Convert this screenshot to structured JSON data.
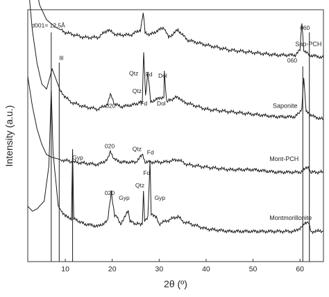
{
  "chart_data": {
    "type": "line",
    "xlabel": "2θ (º)",
    "ylabel": "Intensity (a.u.)",
    "xlim": [
      2,
      65
    ],
    "xticks": [
      10,
      20,
      30,
      40,
      50,
      60
    ],
    "grid": false,
    "series": [
      {
        "name": "Sap-PCH",
        "label_x": 59,
        "offset": 0.69,
        "points": [
          [
            2,
            0.98
          ],
          [
            2.8,
            0.62
          ],
          [
            3.6,
            0.42
          ],
          [
            4.5,
            0.33
          ],
          [
            6,
            0.27
          ],
          [
            8,
            0.24
          ],
          [
            10,
            0.22
          ],
          [
            14,
            0.2
          ],
          [
            17,
            0.2
          ],
          [
            19,
            0.23
          ],
          [
            21,
            0.21
          ],
          [
            24,
            0.21
          ],
          [
            26,
            0.23
          ],
          [
            26.6,
            0.3
          ],
          [
            27,
            0.22
          ],
          [
            28,
            0.21
          ],
          [
            31,
            0.24
          ],
          [
            32,
            0.2
          ],
          [
            34,
            0.23
          ],
          [
            36,
            0.19
          ],
          [
            40,
            0.17
          ],
          [
            45,
            0.15
          ],
          [
            50,
            0.14
          ],
          [
            55,
            0.13
          ],
          [
            59,
            0.13
          ],
          [
            60,
            0.15
          ],
          [
            60.4,
            0.26
          ],
          [
            60.8,
            0.15
          ],
          [
            62,
            0.13
          ],
          [
            65,
            0.12
          ]
        ]
      },
      {
        "name": "Saponite",
        "label_x": 54.2,
        "offset": 0.455,
        "points": [
          [
            2,
            0.66
          ],
          [
            3,
            0.46
          ],
          [
            4,
            0.33
          ],
          [
            5,
            0.25
          ],
          [
            6,
            0.23
          ],
          [
            6.6,
            0.27
          ],
          [
            7.2,
            0.31
          ],
          [
            8,
            0.27
          ],
          [
            9,
            0.22
          ],
          [
            11,
            0.18
          ],
          [
            14,
            0.16
          ],
          [
            17,
            0.15
          ],
          [
            19,
            0.17
          ],
          [
            19.6,
            0.21
          ],
          [
            20.5,
            0.17
          ],
          [
            22,
            0.16
          ],
          [
            25,
            0.17
          ],
          [
            26.4,
            0.18
          ],
          [
            26.7,
            0.38
          ],
          [
            27.1,
            0.2
          ],
          [
            27.6,
            0.3
          ],
          [
            28.2,
            0.18
          ],
          [
            31,
            0.2
          ],
          [
            31.1,
            0.3
          ],
          [
            31.6,
            0.18
          ],
          [
            34,
            0.2
          ],
          [
            35,
            0.18
          ],
          [
            40,
            0.15
          ],
          [
            45,
            0.14
          ],
          [
            50,
            0.13
          ],
          [
            55,
            0.12
          ],
          [
            59,
            0.12
          ],
          [
            60.4,
            0.15
          ],
          [
            60.8,
            0.28
          ],
          [
            61.3,
            0.14
          ],
          [
            63,
            0.12
          ],
          [
            65,
            0.11
          ]
        ]
      },
      {
        "name": "Mont-PCH",
        "label_x": 53.5,
        "offset": 0.285,
        "points": [
          [
            2,
            0.45
          ],
          [
            3,
            0.33
          ],
          [
            4,
            0.24
          ],
          [
            5,
            0.18
          ],
          [
            6,
            0.14
          ],
          [
            7,
            0.13
          ],
          [
            9,
            0.12
          ],
          [
            12,
            0.11
          ],
          [
            17,
            0.1
          ],
          [
            19,
            0.12
          ],
          [
            19.6,
            0.15
          ],
          [
            20.5,
            0.12
          ],
          [
            22,
            0.11
          ],
          [
            25,
            0.11
          ],
          [
            26.5,
            0.14
          ],
          [
            27,
            0.11
          ],
          [
            28,
            0.11
          ],
          [
            31,
            0.11
          ],
          [
            34,
            0.12
          ],
          [
            36,
            0.1
          ],
          [
            40,
            0.09
          ],
          [
            45,
            0.08
          ],
          [
            50,
            0.08
          ],
          [
            55,
            0.07
          ],
          [
            60,
            0.07
          ],
          [
            61.8,
            0.09
          ],
          [
            62.3,
            0.07
          ],
          [
            65,
            0.07
          ]
        ]
      },
      {
        "name": "Montmorillonite",
        "label_x": 53.5,
        "offset": 0.08,
        "points": [
          [
            2,
            0.14
          ],
          [
            3,
            0.12
          ],
          [
            4,
            0.13
          ],
          [
            5.5,
            0.16
          ],
          [
            6.5,
            0.3
          ],
          [
            7,
            0.6
          ],
          [
            7.4,
            0.35
          ],
          [
            8.5,
            0.14
          ],
          [
            10,
            0.1
          ],
          [
            11.3,
            0.09
          ],
          [
            11.55,
            0.36
          ],
          [
            11.8,
            0.09
          ],
          [
            14,
            0.07
          ],
          [
            17,
            0.06
          ],
          [
            19,
            0.08
          ],
          [
            19.8,
            0.2
          ],
          [
            20.5,
            0.1
          ],
          [
            21,
            0.1
          ],
          [
            21.8,
            0.07
          ],
          [
            23.4,
            0.12
          ],
          [
            23.8,
            0.08
          ],
          [
            25,
            0.07
          ],
          [
            26.4,
            0.07
          ],
          [
            26.65,
            0.2
          ],
          [
            26.9,
            0.08
          ],
          [
            27.6,
            0.1
          ],
          [
            28.05,
            0.32
          ],
          [
            28.3,
            0.11
          ],
          [
            29.4,
            0.1
          ],
          [
            30,
            0.07
          ],
          [
            34,
            0.1
          ],
          [
            35,
            0.08
          ],
          [
            40,
            0.05
          ],
          [
            45,
            0.04
          ],
          [
            50,
            0.04
          ],
          [
            55,
            0.04
          ],
          [
            59,
            0.04
          ],
          [
            61.8,
            0.08
          ],
          [
            62.4,
            0.04
          ],
          [
            65,
            0.04
          ]
        ]
      }
    ],
    "reference_lines": [
      {
        "x": 7.0,
        "y_top": 0.91
      },
      {
        "x": 8.7,
        "y_top": 0.79
      },
      {
        "x": 11.55,
        "y_top": 0.395
      },
      {
        "x": 60.6,
        "y_top": 0.775
      },
      {
        "x": 62.0,
        "y_top": 0.91
      }
    ],
    "annotations": [
      {
        "text": "d001= 12,5Å",
        "x": 2.8,
        "y": 0.93
      },
      {
        "text": "Ill",
        "x": 8.7,
        "y": 0.8
      },
      {
        "text": "060",
        "x": 60.0,
        "y": 0.92
      },
      {
        "text": "060",
        "x": 57.3,
        "y": 0.79
      },
      {
        "text": "Qtz",
        "x": 23.6,
        "y": 0.74
      },
      {
        "text": "Fd",
        "x": 27.1,
        "y": 0.735
      },
      {
        "text": "Dol",
        "x": 29.8,
        "y": 0.73
      },
      {
        "text": "Qtz",
        "x": 24.3,
        "y": 0.67
      },
      {
        "text": "020",
        "x": 18.6,
        "y": 0.61
      },
      {
        "text": "Fd",
        "x": 26.0,
        "y": 0.62
      },
      {
        "text": "Dol",
        "x": 29.5,
        "y": 0.62
      },
      {
        "text": "020",
        "x": 18.4,
        "y": 0.45
      },
      {
        "text": "Qtz",
        "x": 24.3,
        "y": 0.44
      },
      {
        "text": "Fd",
        "x": 27.4,
        "y": 0.425
      },
      {
        "text": "Gyp",
        "x": 11.5,
        "y": 0.405
      },
      {
        "text": "Fd",
        "x": 26.6,
        "y": 0.345
      },
      {
        "text": "Qtz",
        "x": 24.9,
        "y": 0.295
      },
      {
        "text": "020",
        "x": 18.4,
        "y": 0.265
      },
      {
        "text": "Gyp",
        "x": 21.4,
        "y": 0.245
      },
      {
        "text": "Gyp",
        "x": 29.0,
        "y": 0.245
      }
    ]
  }
}
